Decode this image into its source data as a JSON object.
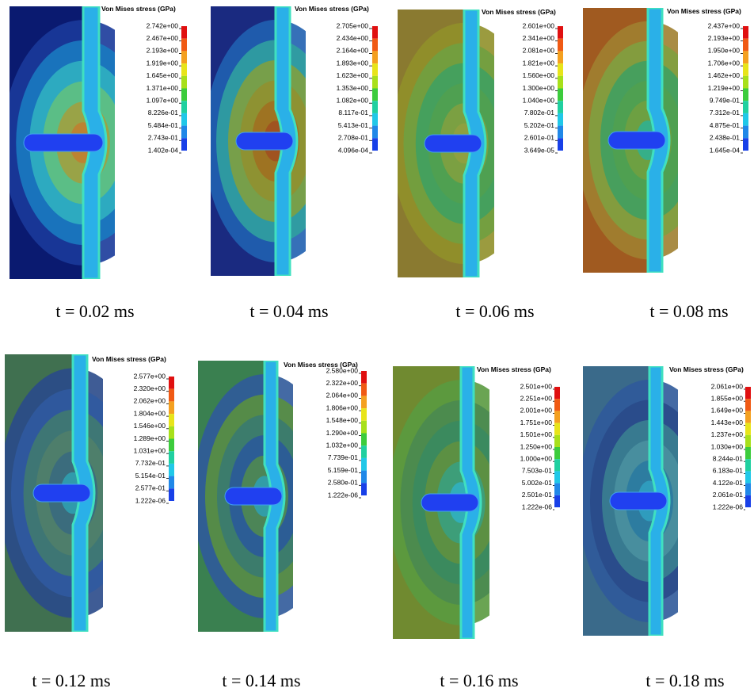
{
  "panels": [
    {
      "legend_title": "Von Mises stress (GPa)",
      "legend_labels": [
        "2.742e+00",
        "2.467e+00",
        "2.193e+00",
        "1.919e+00",
        "1.645e+00",
        "1.371e+00",
        "1.097e+00",
        "8.226e-01",
        "5.484e-01",
        "2.743e-01",
        "1.402e-04"
      ],
      "caption": "t = 0.02 ms"
    },
    {
      "legend_title": "Von Mises stress (GPa)",
      "legend_labels": [
        "2.705e+00",
        "2.434e+00",
        "2.164e+00",
        "1.893e+00",
        "1.623e+00",
        "1.353e+00",
        "1.082e+00",
        "8.117e-01",
        "5.413e-01",
        "2.708e-01",
        "4.096e-04"
      ],
      "caption": "t = 0.04 ms"
    },
    {
      "legend_title": "Von Mises stress (GPa)",
      "legend_labels": [
        "2.601e+00",
        "2.341e+00",
        "2.081e+00",
        "1.821e+00",
        "1.560e+00",
        "1.300e+00",
        "1.040e+00",
        "7.802e-01",
        "5.202e-01",
        "2.601e-01",
        "3.649e-05"
      ],
      "caption": "t = 0.06 ms"
    },
    {
      "legend_title": "Von Mises stress (GPa)",
      "legend_labels": [
        "2.437e+00",
        "2.193e+00",
        "1.950e+00",
        "1.706e+00",
        "1.462e+00",
        "1.219e+00",
        "9.749e-01",
        "7.312e-01",
        "4.875e-01",
        "2.438e-01",
        "1.645e-04"
      ],
      "caption": "t = 0.08 ms"
    },
    {
      "legend_title": "Von Mises stress (GPa)",
      "legend_labels": [
        "2.577e+00",
        "2.320e+00",
        "2.062e+00",
        "1.804e+00",
        "1.546e+00",
        "1.289e+00",
        "1.031e+00",
        "7.732e-01",
        "5.154e-01",
        "2.577e-01",
        "1.222e-06"
      ],
      "caption": "t = 0.12 ms"
    },
    {
      "legend_title": "Von Mises stress (GPa)",
      "legend_labels": [
        "2.580e+00",
        "2.322e+00",
        "2.064e+00",
        "1.806e+00",
        "1.548e+00",
        "1.290e+00",
        "1.032e+00",
        "7.739e-01",
        "5.159e-01",
        "2.580e-01",
        "1.222e-06"
      ],
      "caption": "t = 0.14 ms"
    },
    {
      "legend_title": "Von Mises stress (GPa)",
      "legend_labels": [
        "2.501e+00",
        "2.251e+00",
        "2.001e+00",
        "1.751e+00",
        "1.501e+00",
        "1.250e+00",
        "1.000e+00",
        "7.503e-01",
        "5.002e-01",
        "2.501e-01",
        "1.222e-06"
      ],
      "caption": "t = 0.16 ms"
    },
    {
      "legend_title": "Von Mises stress (GPa)",
      "legend_labels": [
        "2.061e+00",
        "1.855e+00",
        "1.649e+00",
        "1.443e+00",
        "1.237e+00",
        "1.030e+00",
        "8.244e-01",
        "6.183e-01",
        "4.122e-01",
        "2.061e-01",
        "1.222e-06"
      ],
      "caption": "t = 0.18 ms"
    }
  ]
}
